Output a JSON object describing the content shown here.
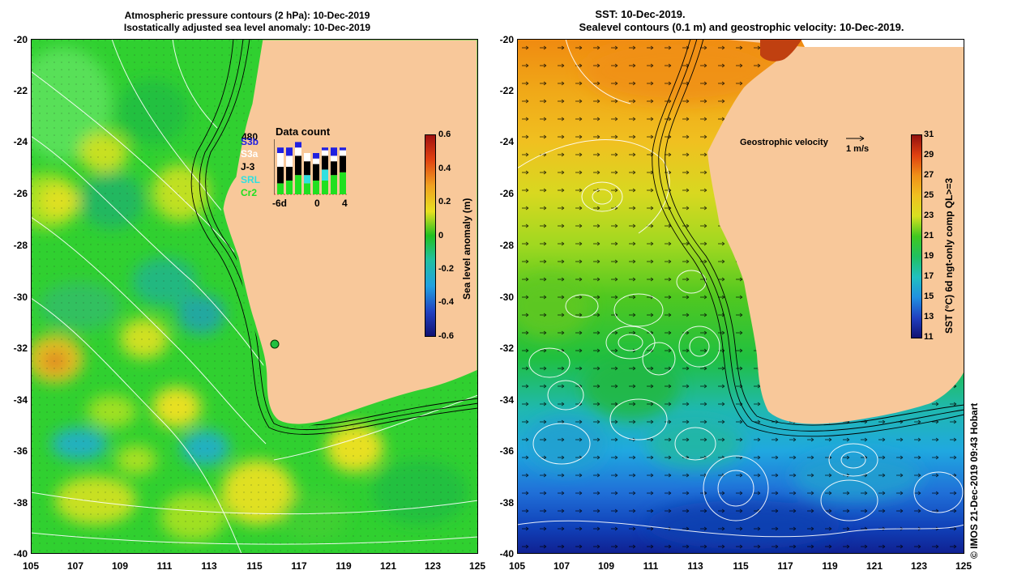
{
  "left_panel": {
    "title_line1": "Atmospheric pressure contours (2 hPa): 10-Dec-2019",
    "title_line2": "Isostatically adjusted sea level anomaly: 10-Dec-2019",
    "y_ticks": [
      "-20",
      "-22",
      "-24",
      "-26",
      "-28",
      "-30",
      "-32",
      "-34",
      "-36",
      "-38",
      "-40"
    ],
    "x_ticks": [
      "105",
      "107",
      "109",
      "111",
      "113",
      "115",
      "117",
      "119",
      "121",
      "123",
      "125"
    ],
    "colorbar": {
      "label": "Sea level anomaly (m)",
      "ticks": [
        "0.6",
        "0.4",
        "0.2",
        "0",
        "-0.2",
        "-0.4",
        "-0.6"
      ],
      "range": [
        -0.6,
        0.6
      ]
    },
    "data_count": {
      "title": "Data count",
      "max_label": "480",
      "x_ticks": [
        "-6d",
        "0",
        "4"
      ],
      "legend": [
        {
          "name": "S3b",
          "color": "#2020e0"
        },
        {
          "name": "S3a",
          "color": "#ffffff"
        },
        {
          "name": "J-3",
          "color": "#000000"
        },
        {
          "name": "SRL",
          "color": "#30e0e0"
        },
        {
          "name": "Cr2",
          "color": "#20e020"
        }
      ],
      "bars": [
        [
          0.1,
          0.25,
          0.3,
          0.0,
          0.2
        ],
        [
          0.15,
          0.2,
          0.25,
          0.0,
          0.25
        ],
        [
          0.1,
          0.15,
          0.35,
          0.0,
          0.35
        ],
        [
          0.0,
          0.15,
          0.25,
          0.15,
          0.2
        ],
        [
          0.1,
          0.1,
          0.3,
          0.0,
          0.25
        ],
        [
          0.05,
          0.1,
          0.25,
          0.2,
          0.25
        ],
        [
          0.15,
          0.1,
          0.25,
          0.0,
          0.35
        ],
        [
          0.05,
          0.1,
          0.3,
          0.0,
          0.4
        ]
      ]
    }
  },
  "right_panel": {
    "title_line1": "SST: 10-Dec-2019.",
    "title_line2": "Sealevel contours (0.1 m) and geostrophic velocity: 10-Dec-2019.",
    "y_ticks": [
      "-20",
      "-22",
      "-24",
      "-26",
      "-28",
      "-30",
      "-32",
      "-34",
      "-36",
      "-38",
      "-40"
    ],
    "x_ticks": [
      "105",
      "107",
      "109",
      "111",
      "113",
      "115",
      "117",
      "119",
      "121",
      "123",
      "125"
    ],
    "velocity_legend": {
      "label": "Geostrophic velocity",
      "unit": "1 m/s"
    },
    "colorbar": {
      "label": "SST (°C) 6d ngt-only comp QL>=3",
      "ticks": [
        "31",
        "29",
        "27",
        "25",
        "23",
        "21",
        "19",
        "17",
        "15",
        "13",
        "11"
      ],
      "range": [
        11,
        31
      ]
    }
  },
  "credit": "© IMOS 21-Dec-2019 09:43 Hobart"
}
